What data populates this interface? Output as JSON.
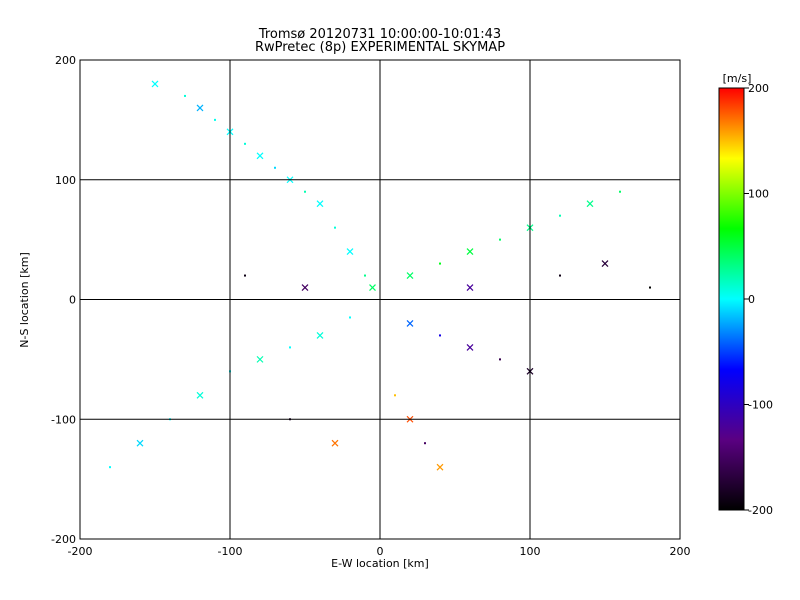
{
  "chart_data": {
    "type": "scatter",
    "title": "Tromsø 20120731 10:00:00-10:01:43",
    "subtitle": "RwPretec (8p) EXPERIMENTAL SKYMAP",
    "xlabel": "E-W location [km]",
    "ylabel": "N-S location [km]",
    "xlim": [
      -200,
      200
    ],
    "ylim": [
      -200,
      200
    ],
    "xticks": [
      -200,
      -100,
      0,
      100,
      200
    ],
    "yticks": [
      -200,
      -100,
      0,
      100,
      200
    ],
    "grid": true,
    "colorbar": {
      "label": "[m/s]",
      "min": -200,
      "max": 200,
      "ticks": [
        200,
        100,
        0,
        -100,
        -200
      ],
      "colors": [
        "#000000",
        "#5a0082",
        "#0000ff",
        "#00ffff",
        "#00ff00",
        "#ffff00",
        "#ff0000"
      ]
    },
    "markers": [
      "x",
      "dot"
    ],
    "series": [
      {
        "points": [
          [
            -150,
            180,
            0
          ],
          [
            -130,
            170,
            10
          ],
          [
            -120,
            160,
            -20
          ],
          [
            -110,
            150,
            5
          ],
          [
            -100,
            140,
            0
          ],
          [
            -90,
            130,
            10
          ],
          [
            -80,
            120,
            0
          ],
          [
            -70,
            110,
            -10
          ],
          [
            -60,
            100,
            0
          ],
          [
            -50,
            90,
            20
          ],
          [
            -40,
            80,
            0
          ],
          [
            -30,
            60,
            10
          ],
          [
            -20,
            40,
            0
          ],
          [
            -10,
            20,
            30
          ],
          [
            -5,
            10,
            40
          ],
          [
            -180,
            -140,
            0
          ],
          [
            -160,
            -120,
            -10
          ],
          [
            -140,
            -100,
            0
          ],
          [
            -120,
            -80,
            10
          ],
          [
            -100,
            -60,
            0
          ],
          [
            -80,
            -50,
            20
          ],
          [
            -60,
            -40,
            0
          ],
          [
            -40,
            -30,
            10
          ],
          [
            -20,
            -15,
            0
          ],
          [
            20,
            20,
            40
          ],
          [
            40,
            30,
            60
          ],
          [
            60,
            40,
            50
          ],
          [
            80,
            50,
            40
          ],
          [
            100,
            60,
            30
          ],
          [
            120,
            70,
            20
          ],
          [
            140,
            80,
            30
          ],
          [
            160,
            90,
            40
          ],
          [
            20,
            -20,
            -40
          ],
          [
            40,
            -30,
            -80
          ],
          [
            60,
            -40,
            -120
          ],
          [
            80,
            -50,
            -160
          ],
          [
            100,
            -60,
            -180
          ],
          [
            10,
            -80,
            150
          ],
          [
            20,
            -100,
            180
          ],
          [
            30,
            -120,
            -150
          ],
          [
            40,
            -140,
            160
          ],
          [
            -60,
            -100,
            -180
          ],
          [
            -30,
            -120,
            170
          ],
          [
            -90,
            20,
            -190
          ],
          [
            -50,
            10,
            -150
          ],
          [
            120,
            20,
            -190
          ],
          [
            150,
            30,
            -170
          ],
          [
            180,
            10,
            -200
          ],
          [
            60,
            10,
            -120
          ]
        ]
      }
    ]
  }
}
